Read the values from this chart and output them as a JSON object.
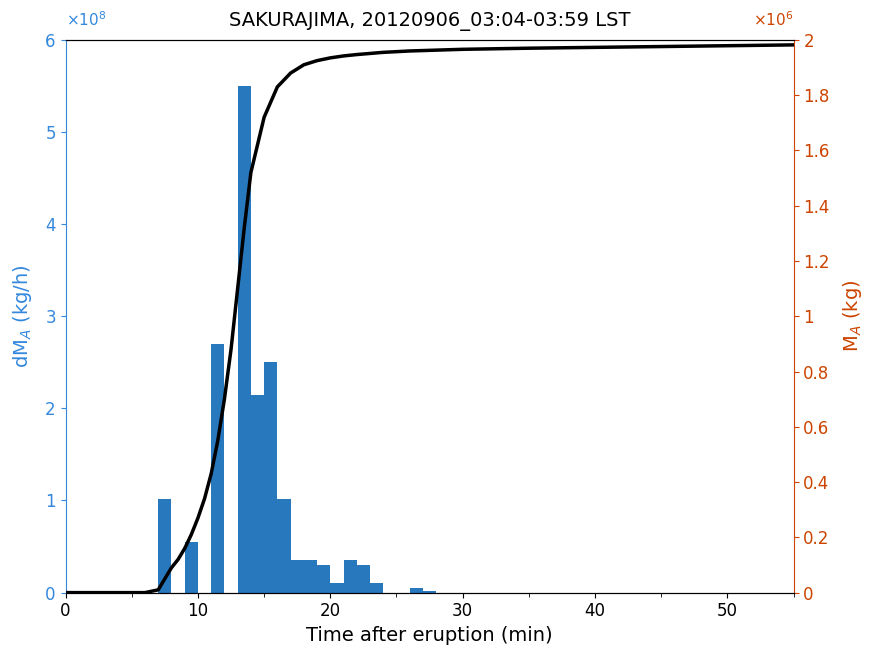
{
  "title": "SAKURAJIMA, 20120906_03:04-03:59 LST",
  "xlabel": "Time after eruption (min)",
  "ylabel_left": "dM_A (kg/h)",
  "ylabel_right": "M_A (kg)",
  "bar_color": "#2878BE",
  "line_color": "#000000",
  "left_axis_color": "#3388DD",
  "right_axis_color": "#CC4400",
  "bar_left_edges": [
    7,
    8,
    9,
    10,
    11,
    12,
    13,
    14,
    15,
    16,
    17,
    18,
    19,
    20,
    21,
    22,
    23,
    24,
    25,
    26,
    27,
    28,
    29,
    30,
    31,
    32
  ],
  "bar_heights": [
    102000000.0,
    0.0,
    55000000.0,
    0.0,
    270000000.0,
    0.0,
    550000000.0,
    215000000.0,
    250000000.0,
    102000000.0,
    35000000.0,
    35000000.0,
    30000000.0,
    10000000.0,
    35000000.0,
    30000000.0,
    10000000.0,
    0.0,
    0.0,
    5000000.0,
    2000000.0,
    0.0,
    0.0,
    0.0,
    0.0,
    0.0
  ],
  "bar_width": 1.0,
  "xlim": [
    0,
    55
  ],
  "ylim_left": [
    0,
    600000000.0
  ],
  "ylim_right": [
    0,
    2000000.0
  ],
  "xticks": [
    0,
    10,
    20,
    30,
    40,
    50
  ],
  "yticks_left": [
    0,
    100000000.0,
    200000000.0,
    300000000.0,
    400000000.0,
    500000000.0,
    600000000.0
  ],
  "yticks_right": [
    0,
    200000.0,
    400000.0,
    600000.0,
    800000.0,
    1000000.0,
    1200000.0,
    1400000.0,
    1600000.0,
    1800000.0,
    2000000.0
  ],
  "cum_line_x": [
    0,
    6,
    7.0,
    7.5,
    8.0,
    8.5,
    9.0,
    9.5,
    10.0,
    10.5,
    11.0,
    11.5,
    12.0,
    12.5,
    13.0,
    13.5,
    14.0,
    15.0,
    16.0,
    17.0,
    18.0,
    19.0,
    20.0,
    21.0,
    22.0,
    24.0,
    26.0,
    28.0,
    30.0,
    35.0,
    40.0,
    45.0,
    50.0,
    55.0
  ],
  "cum_line_y": [
    0,
    0,
    10000.0,
    50000.0,
    90000.0,
    120000.0,
    160000.0,
    210000.0,
    270000.0,
    340000.0,
    430000.0,
    550000.0,
    700000.0,
    880000.0,
    1100000.0,
    1320000.0,
    1520000.0,
    1720000.0,
    1830000.0,
    1880000.0,
    1910000.0,
    1925000.0,
    1935000.0,
    1942000.0,
    1947000.0,
    1955000.0,
    1960000.0,
    1963000.0,
    1966000.0,
    1970000.0,
    1973000.0,
    1976000.0,
    1979000.0,
    1982000.0
  ],
  "figsize": [
    8.75,
    6.56
  ],
  "dpi": 100
}
